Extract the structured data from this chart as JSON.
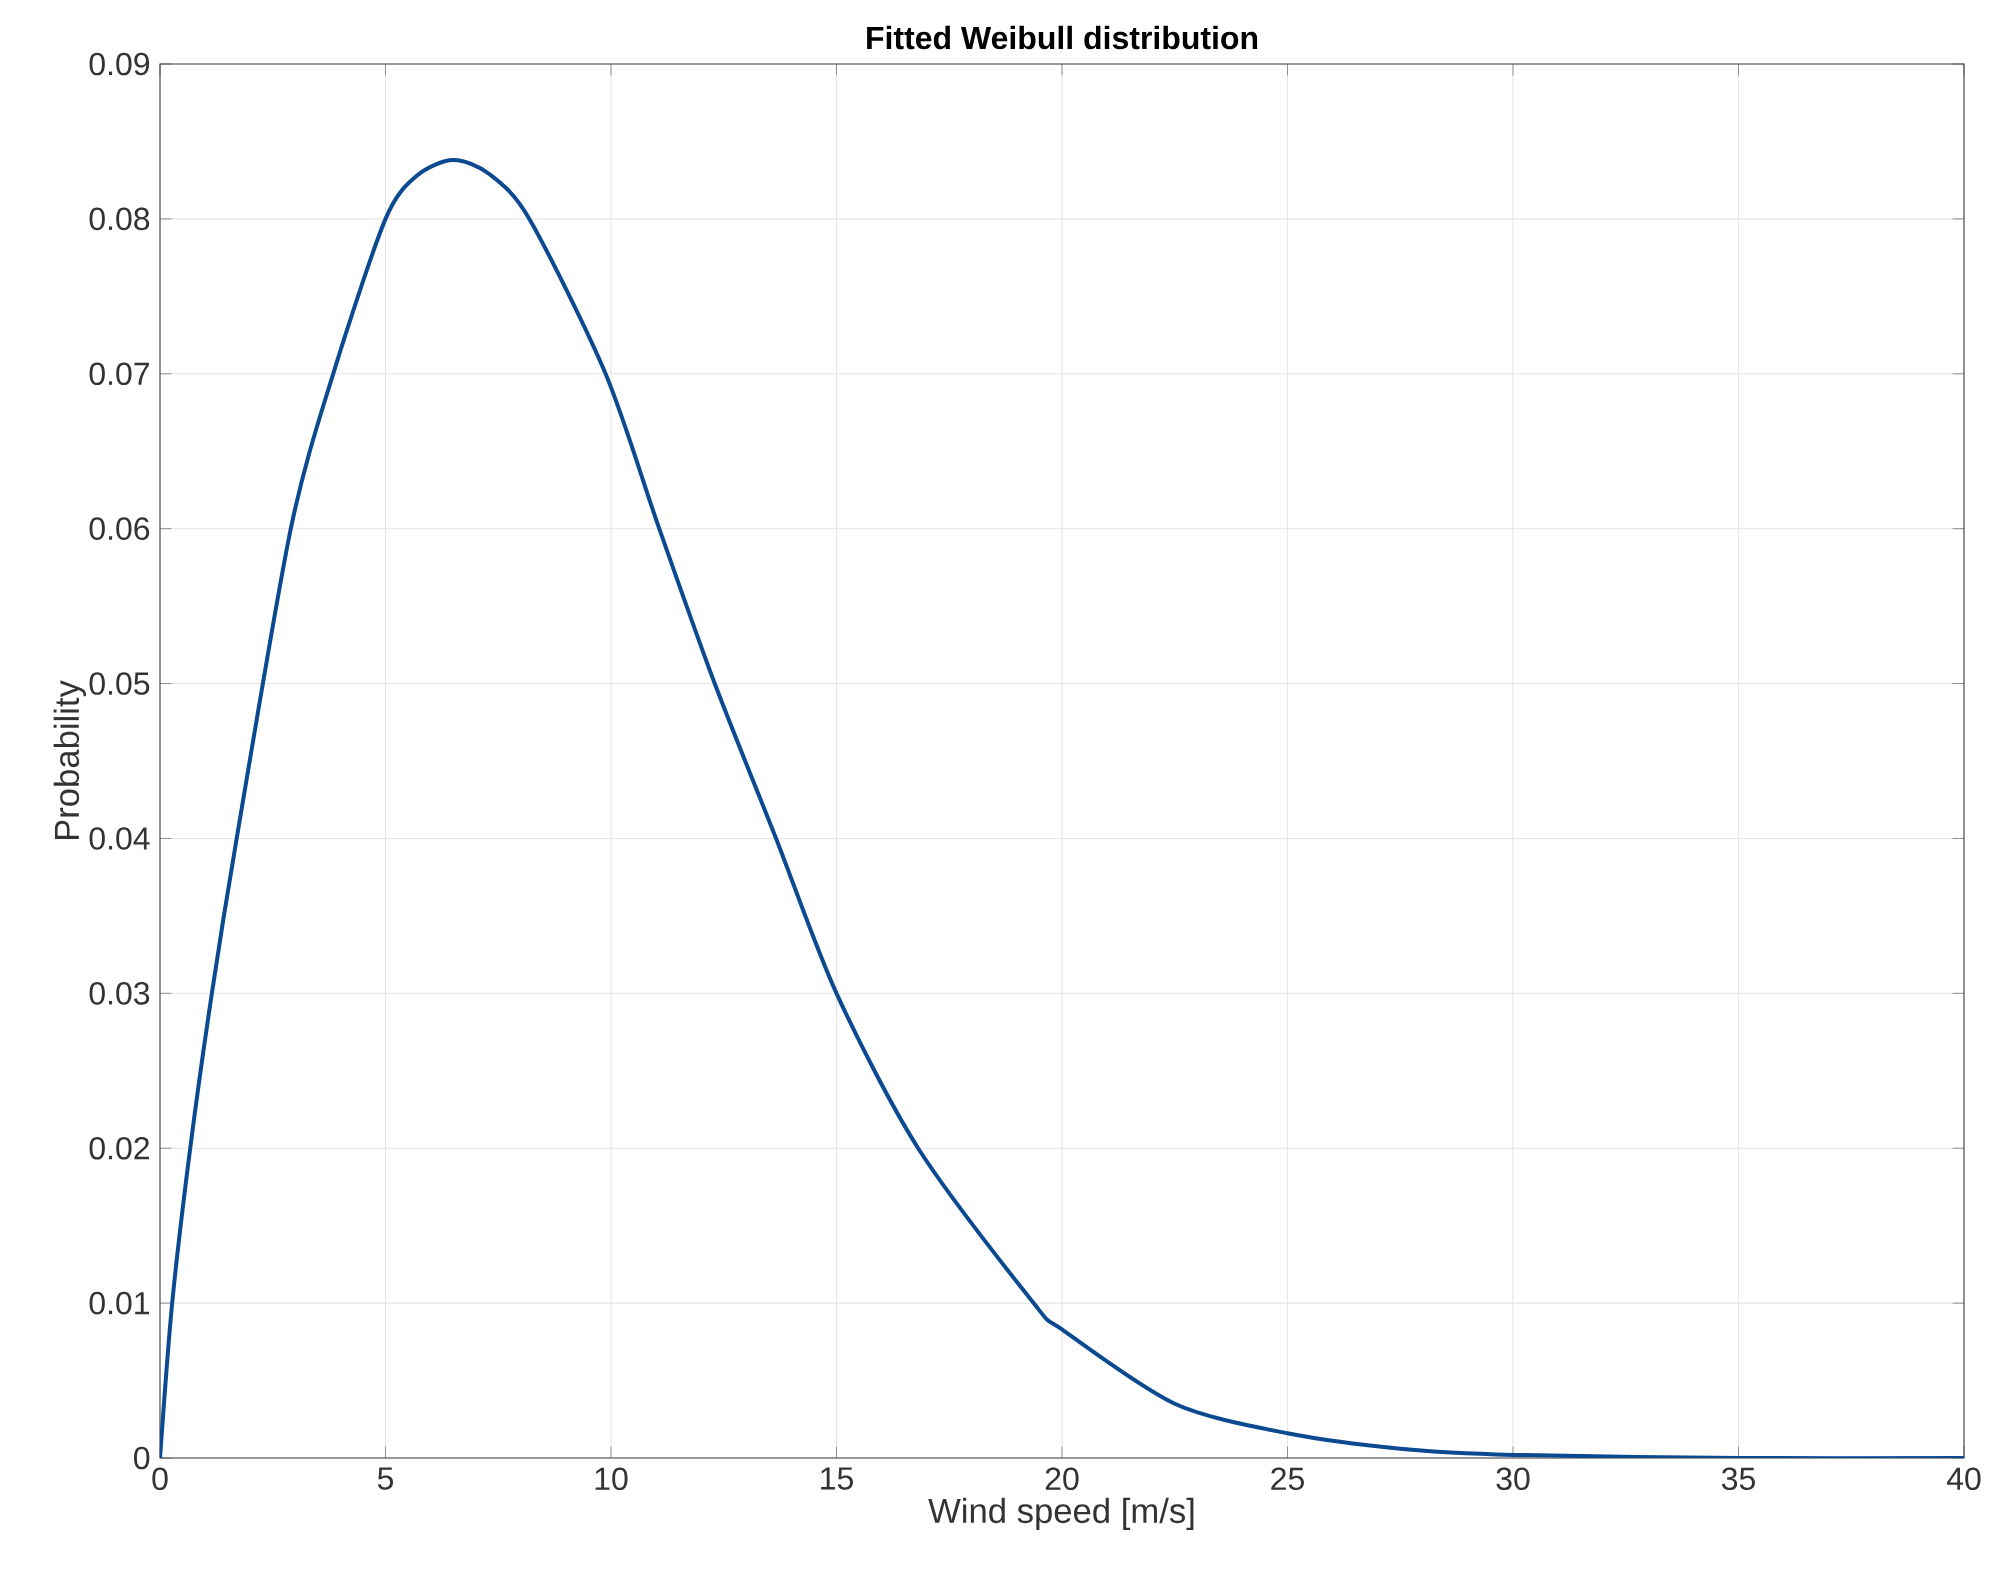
{
  "chart_data": {
    "type": "line",
    "title": "Fitted Weibull distribution",
    "xlabel": "Wind speed [m/s]",
    "ylabel": "Probability",
    "x": [
      0,
      0.27,
      0.67,
      1.15,
      1.7,
      2.9,
      3.84,
      5,
      5.7,
      6.5,
      7.3,
      8.19,
      9.88,
      11.07,
      12.3,
      13.66,
      15,
      16.81,
      19.37,
      20,
      22.5,
      25,
      27.5,
      30,
      35,
      40
    ],
    "series": [
      {
        "color": "#0b4a90",
        "values": [
          0,
          0.01,
          0.02,
          0.03,
          0.04,
          0.06,
          0.07,
          0.08,
          0.0828,
          0.0838,
          0.0829,
          0.08,
          0.07,
          0.06,
          0.05,
          0.04,
          0.03,
          0.02,
          0.01,
          0.0083,
          0.0035,
          0.0016,
          0.0006,
          0.0002,
          0,
          0
        ]
      }
    ],
    "xlim": [
      0,
      40
    ],
    "ylim": [
      0,
      0.09
    ],
    "xticks": [
      0,
      5,
      10,
      15,
      20,
      25,
      30,
      35,
      40
    ],
    "yticks": [
      0,
      0.01,
      0.02,
      0.03,
      0.04,
      0.05,
      0.06,
      0.07,
      0.08,
      0.09
    ],
    "grid": true,
    "marker": "none",
    "line_style": "solid"
  }
}
